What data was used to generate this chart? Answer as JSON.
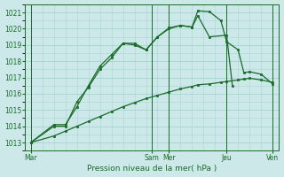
{
  "xlabel": "Pression niveau de la mer( hPa )",
  "background_color": "#cce8e8",
  "grid_color": "#aad4d4",
  "line_color": "#1a6b2a",
  "ylim": [
    1012.5,
    1021.5
  ],
  "yticks": [
    1013,
    1014,
    1015,
    1016,
    1017,
    1018,
    1019,
    1020,
    1021
  ],
  "xlim": [
    0,
    22
  ],
  "day_labels": [
    "Mar",
    "Sam",
    "Mer",
    "Jeu",
    "Ven"
  ],
  "day_positions": [
    0.5,
    11.0,
    12.5,
    17.5,
    21.5
  ],
  "vline_positions": [
    0.5,
    11.0,
    12.5,
    17.5,
    21.5
  ],
  "s1_x": [
    0.5,
    2.5,
    3.5,
    4.5,
    5.5,
    6.5,
    7.5,
    8.5,
    9.5,
    10.5,
    11.5,
    12.5,
    13.5,
    14.5,
    15.0,
    16.0,
    17.5,
    18.0
  ],
  "s1_y": [
    1013.0,
    1014.0,
    1014.0,
    1015.5,
    1016.4,
    1017.5,
    1018.2,
    1019.1,
    1019.1,
    1018.7,
    1019.5,
    1020.05,
    1020.2,
    1020.1,
    1020.8,
    1019.5,
    1019.6,
    1016.5
  ],
  "s2_x": [
    0.5,
    2.5,
    3.5,
    4.5,
    5.5,
    6.5,
    7.5,
    8.5,
    9.5,
    10.5,
    11.5,
    12.5,
    13.5,
    14.5,
    15.0,
    16.0,
    17.0,
    17.5,
    18.5,
    19.0,
    19.5,
    20.5,
    21.5
  ],
  "s2_y": [
    1013.0,
    1014.1,
    1014.1,
    1015.2,
    1016.5,
    1017.7,
    1018.4,
    1019.1,
    1019.0,
    1018.7,
    1019.5,
    1020.0,
    1020.2,
    1020.1,
    1021.1,
    1021.05,
    1020.5,
    1019.2,
    1018.7,
    1017.3,
    1017.35,
    1017.2,
    1016.6
  ],
  "s3_x": [
    0.5,
    2.5,
    3.5,
    4.5,
    5.5,
    6.5,
    7.5,
    8.5,
    9.5,
    10.5,
    11.5,
    12.5,
    13.5,
    14.5,
    15.0,
    16.0,
    17.0,
    17.5,
    18.5,
    19.0,
    19.5,
    20.5,
    21.5
  ],
  "s3_y": [
    1013.0,
    1013.4,
    1013.7,
    1014.0,
    1014.3,
    1014.6,
    1014.9,
    1015.2,
    1015.45,
    1015.7,
    1015.9,
    1016.1,
    1016.3,
    1016.45,
    1016.55,
    1016.6,
    1016.7,
    1016.75,
    1016.85,
    1016.9,
    1016.95,
    1016.85,
    1016.7
  ]
}
